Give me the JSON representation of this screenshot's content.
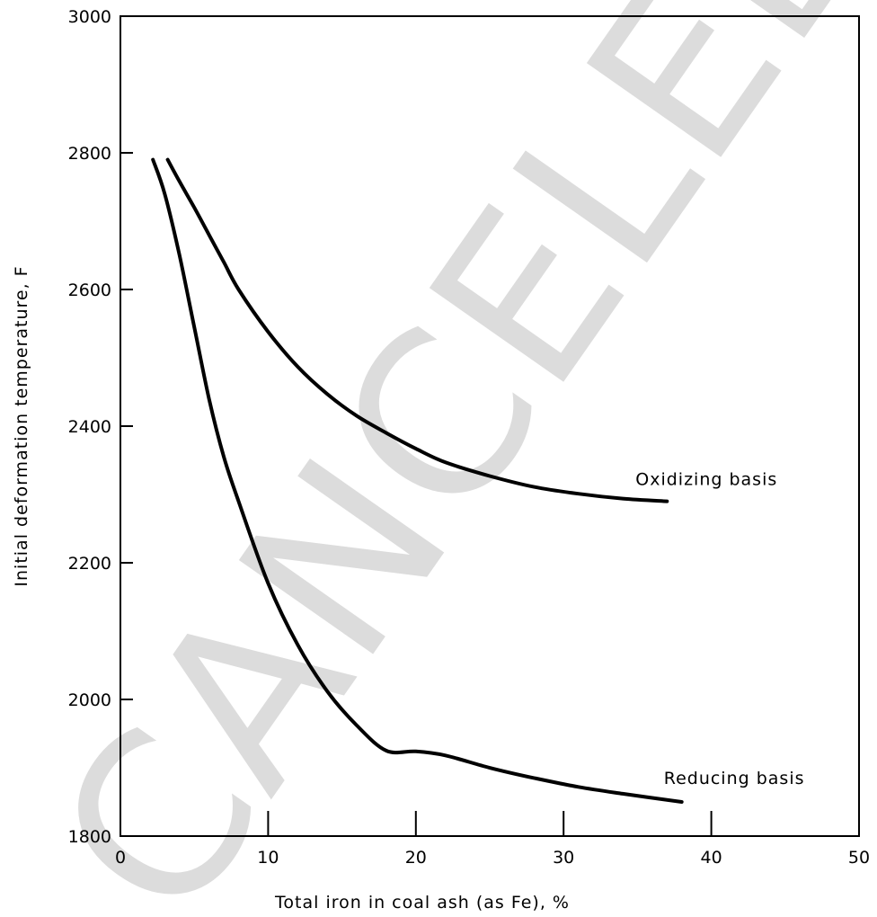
{
  "watermark": "CANCELED",
  "chart_data": {
    "type": "line",
    "title": "",
    "xlabel": "Total iron in coal ash (as Fe), %",
    "ylabel": "Initial deformation temperature, F",
    "xlim": [
      0,
      50
    ],
    "ylim": [
      1800,
      3000
    ],
    "x_ticks": [
      "0",
      "10",
      "20",
      "30",
      "40",
      "50"
    ],
    "y_ticks": [
      "1800",
      "2000",
      "2200",
      "2400",
      "2600",
      "2800",
      "3000"
    ],
    "grid": false,
    "legend": "none (curves labeled directly)",
    "series": [
      {
        "name": "Oxidizing basis",
        "x": [
          3.2,
          4,
          5,
          6,
          7,
          8,
          10,
          12,
          14,
          16,
          18,
          20,
          22,
          25,
          28,
          31,
          34,
          37
        ],
        "y": [
          2790,
          2758,
          2720,
          2680,
          2640,
          2600,
          2538,
          2487,
          2447,
          2415,
          2390,
          2367,
          2347,
          2327,
          2311,
          2301,
          2294,
          2290
        ]
      },
      {
        "name": "Reducing basis",
        "x": [
          2.2,
          3,
          4,
          5,
          6,
          7,
          8,
          10,
          12,
          14,
          16,
          18,
          20,
          22,
          25,
          28,
          31,
          34,
          38
        ],
        "y": [
          2790,
          2740,
          2650,
          2545,
          2440,
          2355,
          2290,
          2170,
          2080,
          2012,
          1962,
          1925,
          1950,
          1918,
          1900,
          1885,
          1872,
          1862,
          1850
        ]
      }
    ]
  }
}
